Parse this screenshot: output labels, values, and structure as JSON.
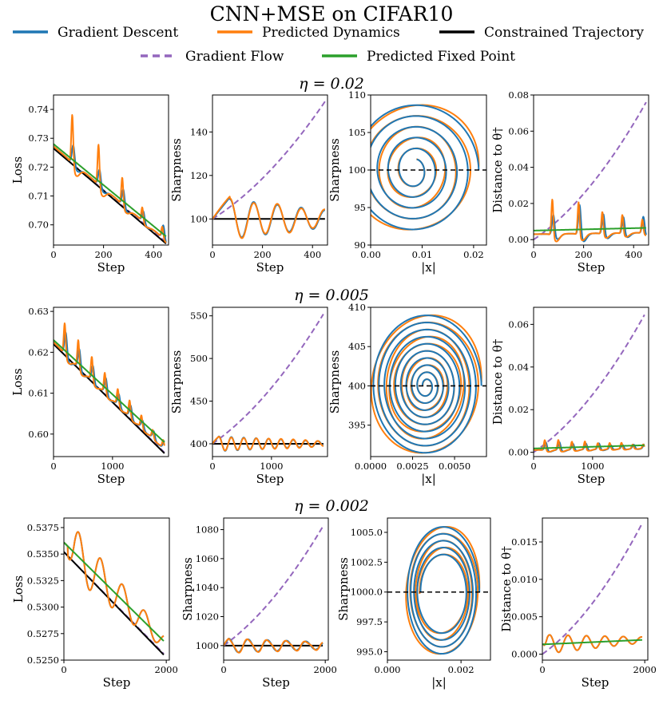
{
  "title": "CNN+MSE on CIFAR10",
  "legend": [
    {
      "label": "Gradient Descent",
      "color": "#1f77b4",
      "dash": false
    },
    {
      "label": "Predicted Dynamics",
      "color": "#ff7f0e",
      "dash": false
    },
    {
      "label": "Constrained Trajectory",
      "color": "#000000",
      "dash": false
    },
    {
      "label": "Gradient Flow",
      "color": "#9467bd",
      "dash": true
    },
    {
      "label": "Predicted Fixed Point",
      "color": "#2ca02c",
      "dash": false
    }
  ],
  "rows": [
    {
      "title": "η = 0.02"
    },
    {
      "title": "η = 0.005"
    },
    {
      "title": "η = 0.002"
    }
  ],
  "chart_data": [
    {
      "type": "line",
      "row": 0,
      "kind": "loss",
      "xlabel": "Step",
      "ylabel": "Loss",
      "xlim": [
        0,
        460
      ],
      "ylim": [
        0.693,
        0.745
      ],
      "xticks": [
        0,
        200,
        400
      ],
      "xticklabels": [
        "0",
        "200",
        "400"
      ],
      "yticks": [
        0.7,
        0.71,
        0.72,
        0.73,
        0.74
      ],
      "yticklabels": [
        "0.70",
        "0.71",
        "0.72",
        "0.73",
        "0.74"
      ],
      "xmax": 450,
      "flow": [
        0.7265,
        0.694
      ],
      "constrained": [
        0.7265,
        0.6935
      ],
      "fixed_point": [
        0.728,
        0.696
      ],
      "spike_steps": [
        75,
        180,
        275,
        355,
        435
      ],
      "spike_gd": [
        0.007,
        0.006,
        0.006,
        0.004,
        0.005
      ],
      "spike_pred": [
        0.018,
        0.015,
        0.01,
        0.005,
        0.004
      ]
    },
    {
      "type": "line",
      "row": 0,
      "kind": "sharp",
      "xlabel": "Step",
      "ylabel": "Sharpness",
      "xlim": [
        0,
        460
      ],
      "ylim": [
        88,
        157
      ],
      "xticks": [
        0,
        200,
        400
      ],
      "xticklabels": [
        "0",
        "200",
        "400"
      ],
      "yticks": [
        100,
        120,
        140
      ],
      "yticklabels": [
        "100",
        "120",
        "140"
      ],
      "xmax": 450,
      "threshold": 100,
      "flow": [
        100,
        154
      ],
      "flow_start": [
        0,
        0.2
      ],
      "osc_amp": [
        10,
        4
      ],
      "osc_period": 95,
      "osc_start": 70
    },
    {
      "type": "line",
      "row": 0,
      "kind": "phase",
      "xlabel": "|x|",
      "ylabel": "Sharpness",
      "xlim": [
        0,
        0.0225
      ],
      "ylim": [
        90,
        110
      ],
      "xticks": [
        0,
        0.01,
        0.02
      ],
      "xticklabels": [
        "0.00",
        "0.01",
        "0.02"
      ],
      "yticks": [
        90,
        95,
        100,
        105,
        110
      ],
      "yticklabels": [
        "90",
        "95",
        "100",
        "105",
        "110"
      ],
      "threshold": 100,
      "center": [
        0.0085,
        100
      ],
      "rx_range": [
        0.0015,
        0.0125
      ],
      "ry_range": [
        1.5,
        9
      ],
      "turns": 5.2
    },
    {
      "type": "line",
      "row": 0,
      "kind": "dist",
      "xlabel": "Step",
      "ylabel": "Distance to θ†",
      "xlim": [
        0,
        460
      ],
      "ylim": [
        -0.003,
        0.08
      ],
      "xticks": [
        0,
        200,
        400
      ],
      "xticklabels": [
        "0",
        "200",
        "400"
      ],
      "yticks": [
        0,
        0.02,
        0.04,
        0.06,
        0.08
      ],
      "yticklabels": [
        "0.00",
        "0.02",
        "0.04",
        "0.06",
        "0.08"
      ],
      "xmax": 450,
      "flow": [
        0,
        0.076
      ],
      "fixed_point": [
        0.005,
        0.0065
      ],
      "spike_steps": [
        75,
        180,
        275,
        355,
        435
      ],
      "spike_gd": [
        0.012,
        0.018,
        0.012,
        0.01,
        0.01
      ],
      "spike_pred": [
        0.021,
        0.019,
        0.013,
        0.011,
        0.008
      ]
    },
    {
      "type": "line",
      "row": 1,
      "kind": "loss",
      "xlabel": "Step",
      "ylabel": "Loss",
      "xlim": [
        0,
        1950
      ],
      "ylim": [
        0.5945,
        0.631
      ],
      "xticks": [
        0,
        1000
      ],
      "xticklabels": [
        "0",
        "1000"
      ],
      "yticks": [
        0.6,
        0.61,
        0.62,
        0.63
      ],
      "yticklabels": [
        "0.60",
        "0.61",
        "0.62",
        "0.63"
      ],
      "xmax": 1880,
      "flow": [
        0.622,
        0.5955
      ],
      "constrained": [
        0.622,
        0.5953
      ],
      "fixed_point": [
        0.623,
        0.598
      ],
      "spike_steps": [
        190,
        420,
        650,
        870,
        1090,
        1290,
        1490,
        1680,
        1860
      ],
      "spike_gd": [
        0.006,
        0.005,
        0.004,
        0.004,
        0.003,
        0.003,
        0.002,
        0.002,
        0.002
      ],
      "spike_pred": [
        0.008,
        0.007,
        0.006,
        0.005,
        0.004,
        0.004,
        0.003,
        0.002,
        0.002
      ]
    },
    {
      "type": "line",
      "row": 1,
      "kind": "sharp",
      "xlabel": "Step",
      "ylabel": "Sharpness",
      "xlim": [
        0,
        1950
      ],
      "ylim": [
        385,
        560
      ],
      "xticks": [
        0,
        1000
      ],
      "xticklabels": [
        "0",
        "1000"
      ],
      "yticks": [
        400,
        450,
        500,
        550
      ],
      "yticklabels": [
        "400",
        "450",
        "500",
        "550"
      ],
      "xmax": 1880,
      "threshold": 400,
      "flow": [
        400,
        552
      ],
      "flow_start": [
        0,
        0.3
      ],
      "osc_amp": [
        9,
        3
      ],
      "osc_period": 210,
      "osc_start": 110
    },
    {
      "type": "line",
      "row": 1,
      "kind": "phase",
      "xlabel": "|x|",
      "ylabel": "Sharpness",
      "xlim": [
        0,
        0.0069
      ],
      "ylim": [
        391,
        410
      ],
      "xticks": [
        0,
        0.0025,
        0.005
      ],
      "xticklabels": [
        "0.0000",
        "0.0025",
        "0.0050"
      ],
      "yticks": [
        395,
        400,
        405,
        410
      ],
      "yticklabels": [
        "395",
        "400",
        "405",
        "410"
      ],
      "threshold": 400,
      "center": [
        0.0033,
        400
      ],
      "rx_range": [
        0.0002,
        0.0033
      ],
      "ry_range": [
        0.6,
        9.2
      ],
      "turns": 9.5
    },
    {
      "type": "line",
      "row": 1,
      "kind": "dist",
      "xlabel": "Step",
      "ylabel": "Distance to θ†",
      "xlim": [
        0,
        1950
      ],
      "ylim": [
        -0.002,
        0.068
      ],
      "xticks": [
        0,
        1000
      ],
      "xticklabels": [
        "0",
        "1000"
      ],
      "yticks": [
        0,
        0.02,
        0.04,
        0.06
      ],
      "yticklabels": [
        "0.00",
        "0.02",
        "0.04",
        "0.06"
      ],
      "xmax": 1880,
      "flow": [
        0,
        0.0645
      ],
      "fixed_point": [
        0.0018,
        0.0033
      ],
      "spike_steps": [
        190,
        420,
        650,
        870,
        1090,
        1290,
        1490,
        1680,
        1860
      ],
      "spike_gd": [
        0.004,
        0.004,
        0.003,
        0.003,
        0.003,
        0.002,
        0.002,
        0.002,
        0.002
      ],
      "spike_pred": [
        0.005,
        0.005,
        0.004,
        0.004,
        0.003,
        0.003,
        0.003,
        0.002,
        0.002
      ]
    },
    {
      "type": "line",
      "row": 2,
      "kind": "loss",
      "xlabel": "Step",
      "ylabel": "Loss",
      "xlim": [
        0,
        2060
      ],
      "ylim": [
        0.525,
        0.5384
      ],
      "xticks": [
        0,
        2000
      ],
      "xticklabels": [
        "0",
        "2000"
      ],
      "yticks": [
        0.525,
        0.5275,
        0.53,
        0.5325,
        0.535,
        0.5375
      ],
      "yticklabels": [
        "0.5250",
        "0.5275",
        "0.5300",
        "0.5325",
        "0.5350",
        "0.5375"
      ],
      "xmax": 1950,
      "flow": [
        0.5352,
        0.5256
      ],
      "constrained": [
        0.5352,
        0.5255
      ],
      "fixed_point": [
        0.5361,
        0.5268
      ],
      "osc_amp": [
        0.0026,
        0.0007
      ],
      "osc_period": 430,
      "osc_start": 260
    },
    {
      "type": "line",
      "row": 2,
      "kind": "sharp",
      "xlabel": "Step",
      "ylabel": "Sharpness",
      "xlim": [
        0,
        2060
      ],
      "ylim": [
        990,
        1088
      ],
      "xticks": [
        0,
        2000
      ],
      "xticklabels": [
        "0",
        "2000"
      ],
      "yticks": [
        1000,
        1020,
        1040,
        1060,
        1080
      ],
      "yticklabels": [
        "1000",
        "1020",
        "1040",
        "1060",
        "1080"
      ],
      "xmax": 1950,
      "threshold": 1000,
      "flow": [
        1000,
        1082
      ],
      "flow_start": [
        0,
        0.2
      ],
      "osc_amp": [
        5,
        2.5
      ],
      "osc_period": 380,
      "osc_start": 100
    },
    {
      "type": "line",
      "row": 2,
      "kind": "phase",
      "xlabel": "|x|",
      "ylabel": "Sharpness",
      "xlim": [
        0,
        0.0028
      ],
      "ylim": [
        994.3,
        1006.2
      ],
      "xticks": [
        0,
        0.002
      ],
      "xticklabels": [
        "0.000",
        "0.002"
      ],
      "yticks": [
        995,
        997.5,
        1000,
        1002.5,
        1005
      ],
      "yticklabels": [
        "995.0",
        "997.5",
        "1000.0",
        "1002.5",
        "1005.0"
      ],
      "threshold": 1000,
      "center": [
        0.0015,
        1000
      ],
      "rx_range": [
        0.0006,
        0.001
      ],
      "ry_range": [
        3,
        5.6
      ],
      "turns": 4.5
    },
    {
      "type": "line",
      "row": 2,
      "kind": "dist",
      "xlabel": "Step",
      "ylabel": "Distance to θ†",
      "xlim": [
        0,
        2060
      ],
      "ylim": [
        -0.0008,
        0.0182
      ],
      "xticks": [
        0,
        2000
      ],
      "xticklabels": [
        "0",
        "2000"
      ],
      "yticks": [
        0,
        0.005,
        0.01,
        0.015
      ],
      "yticklabels": [
        "0.000",
        "0.005",
        "0.010",
        "0.015"
      ],
      "xmax": 1950,
      "flow": [
        0,
        0.0175
      ],
      "fixed_point": [
        0.0013,
        0.0019
      ],
      "osc_amp": [
        0.0013,
        0.0004
      ],
      "osc_period": 360,
      "osc_start": 120
    }
  ]
}
